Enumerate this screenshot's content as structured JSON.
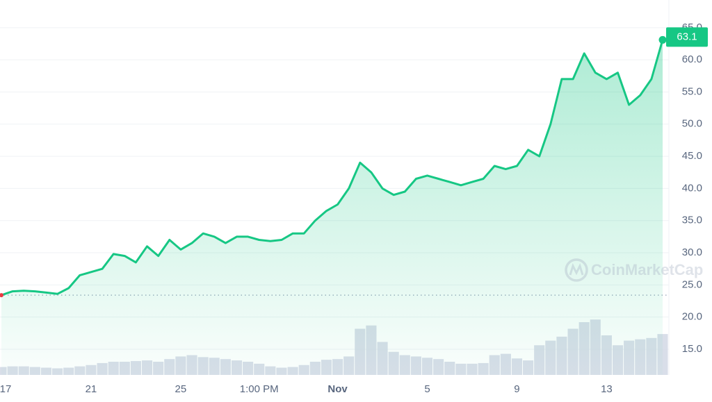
{
  "chart_data": {
    "type": "line",
    "watermark": "CoinMarketCap",
    "color": "#16c784",
    "start_color": "#ea3943",
    "volume_color": "#cfd6e4",
    "categories": [
      "17",
      null,
      null,
      null,
      null,
      null,
      null,
      null,
      "21",
      null,
      null,
      null,
      null,
      null,
      null,
      null,
      "25",
      null,
      null,
      null,
      null,
      null,
      null,
      "1:00 PM",
      null,
      null,
      null,
      null,
      null,
      null,
      "Nov",
      null,
      null,
      null,
      null,
      null,
      null,
      null,
      "5",
      null,
      null,
      null,
      null,
      null,
      null,
      null,
      "9",
      null,
      null,
      null,
      null,
      null,
      null,
      null,
      "13",
      null,
      null,
      null,
      null,
      null
    ],
    "values": [
      23.4,
      24.0,
      24.1,
      24.0,
      23.8,
      23.6,
      24.5,
      26.5,
      27.0,
      27.5,
      29.8,
      29.5,
      28.5,
      31.0,
      29.5,
      32.0,
      30.5,
      31.5,
      33.0,
      32.5,
      31.5,
      32.5,
      32.5,
      32.0,
      31.8,
      32.0,
      33.0,
      33.0,
      35.0,
      36.5,
      37.5,
      40.0,
      44.0,
      42.5,
      40.0,
      39.0,
      39.5,
      41.5,
      42.0,
      41.5,
      41.0,
      40.5,
      41.0,
      41.5,
      43.5,
      43.0,
      43.5,
      46.0,
      45.0,
      50.0,
      57.0,
      57.0,
      61.0,
      58.0,
      57.0,
      58.0,
      53.0,
      54.5,
      57.0,
      63.1
    ],
    "volume": [
      12,
      13,
      13,
      12,
      11,
      10,
      11,
      13,
      15,
      18,
      20,
      20,
      21,
      22,
      20,
      24,
      28,
      30,
      27,
      26,
      24,
      22,
      20,
      17,
      13,
      11,
      12,
      15,
      20,
      23,
      24,
      28,
      70,
      75,
      50,
      35,
      30,
      28,
      26,
      24,
      20,
      17,
      17,
      18,
      30,
      32,
      25,
      22,
      45,
      52,
      58,
      70,
      80,
      84,
      60,
      45,
      52,
      54,
      56,
      62
    ],
    "volume_lim": [
      0,
      100
    ],
    "ylim": [
      11.0,
      69.3
    ],
    "yticks": [
      {
        "value": 15,
        "label": "15.0"
      },
      {
        "value": 20,
        "label": "20.0"
      },
      {
        "value": 25,
        "label": "25.0"
      },
      {
        "value": 30,
        "label": "30.0"
      },
      {
        "value": 35,
        "label": "35.0"
      },
      {
        "value": 40,
        "label": "40.0"
      },
      {
        "value": 45,
        "label": "45.0"
      },
      {
        "value": 50,
        "label": "50.0"
      },
      {
        "value": 55,
        "label": "55.0"
      },
      {
        "value": 60,
        "label": "60.0"
      },
      {
        "value": 65,
        "label": "65.0"
      }
    ],
    "grid": true
  }
}
